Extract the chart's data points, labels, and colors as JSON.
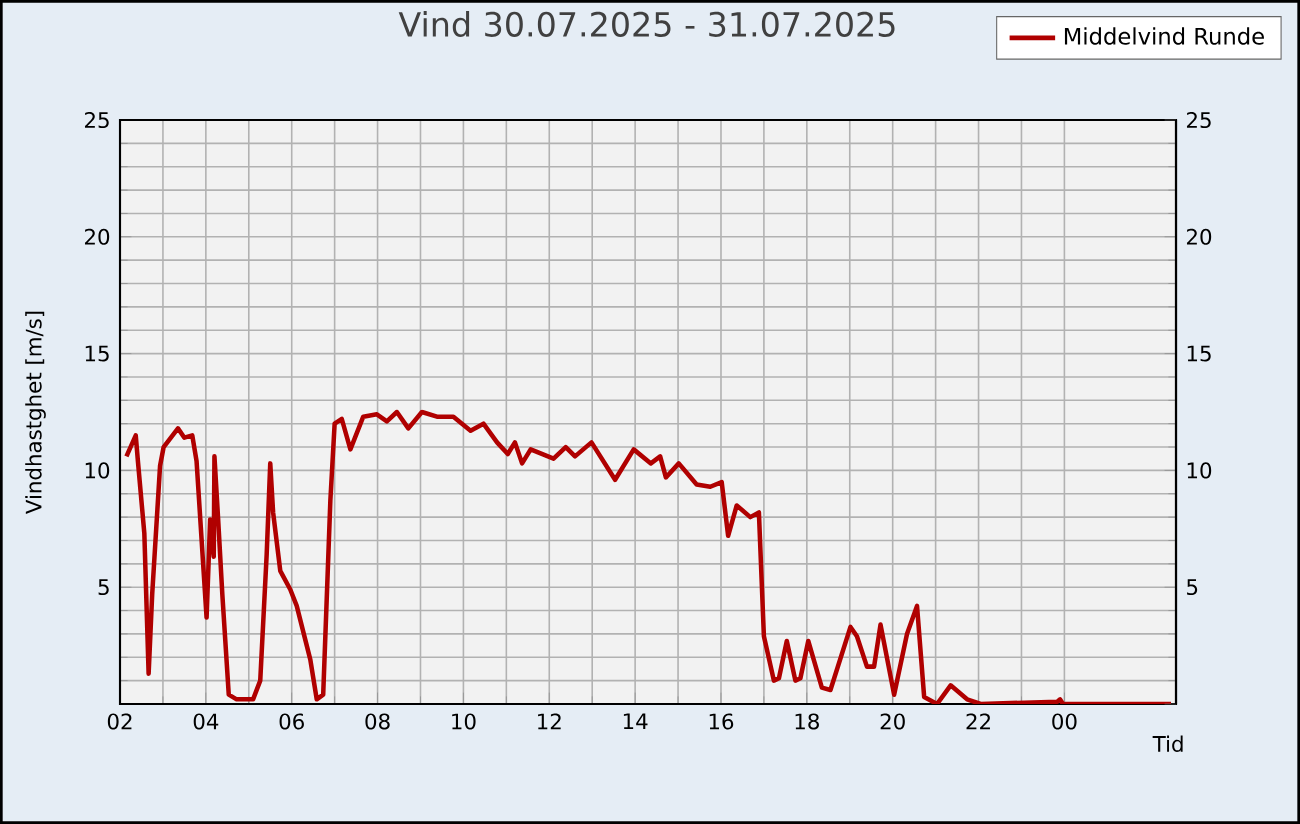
{
  "chart_data": {
    "type": "line",
    "title": "Vind 30.07.2025 - 31.07.2025",
    "xlabel": "Tid",
    "ylabel": "Vindhastghet [m/s]",
    "x": [
      "2025-07-30T02:09",
      "2025-07-30T02:22",
      "2025-07-30T02:25",
      "2025-07-30T02:34",
      "2025-07-30T02:40",
      "2025-07-30T02:45",
      "2025-07-30T02:56",
      "2025-07-30T03:01",
      "2025-07-30T03:21",
      "2025-07-30T03:30",
      "2025-07-30T03:41",
      "2025-07-30T03:47",
      "2025-07-30T04:01",
      "2025-07-30T04:06",
      "2025-07-30T04:11",
      "2025-07-30T04:12",
      "2025-07-30T04:17",
      "2025-07-30T04:23",
      "2025-07-30T04:32",
      "2025-07-30T04:43",
      "2025-07-30T05:06",
      "2025-07-30T05:16",
      "2025-07-30T05:25",
      "2025-07-30T05:30",
      "2025-07-30T05:34",
      "2025-07-30T05:44",
      "2025-07-30T05:58",
      "2025-07-30T06:07",
      "2025-07-30T06:26",
      "2025-07-30T06:35",
      "2025-07-30T06:44",
      "2025-07-30T06:54",
      "2025-07-30T07:00",
      "2025-07-30T07:10",
      "2025-07-30T07:22",
      "2025-07-30T07:40",
      "2025-07-30T07:59",
      "2025-07-30T08:13",
      "2025-07-30T08:27",
      "2025-07-30T08:43",
      "2025-07-30T09:02",
      "2025-07-30T09:23",
      "2025-07-30T09:46",
      "2025-07-30T10:10",
      "2025-07-30T10:28",
      "2025-07-30T10:47",
      "2025-07-30T11:02",
      "2025-07-30T11:12",
      "2025-07-30T11:22",
      "2025-07-30T11:34",
      "2025-07-30T12:06",
      "2025-07-30T12:23",
      "2025-07-30T12:36",
      "2025-07-30T12:59",
      "2025-07-30T13:32",
      "2025-07-30T13:58",
      "2025-07-30T14:22",
      "2025-07-30T14:35",
      "2025-07-30T14:43",
      "2025-07-30T15:01",
      "2025-07-30T15:26",
      "2025-07-30T15:45",
      "2025-07-30T16:01",
      "2025-07-30T16:10",
      "2025-07-30T16:22",
      "2025-07-30T16:41",
      "2025-07-30T16:53",
      "2025-07-30T17:00",
      "2025-07-30T17:14",
      "2025-07-30T17:21",
      "2025-07-30T17:32",
      "2025-07-30T17:44",
      "2025-07-30T17:51",
      "2025-07-30T18:02",
      "2025-07-30T18:21",
      "2025-07-30T18:33",
      "2025-07-30T19:01",
      "2025-07-30T19:10",
      "2025-07-30T19:24",
      "2025-07-30T19:34",
      "2025-07-30T19:43",
      "2025-07-30T20:02",
      "2025-07-30T20:20",
      "2025-07-30T20:34",
      "2025-07-30T20:44",
      "2025-07-30T21:02",
      "2025-07-30T21:21",
      "2025-07-30T21:44",
      "2025-07-30T22:03",
      "2025-07-30T23:50",
      "2025-07-30T23:54",
      "2025-07-30T23:58",
      "2025-07-31T02:29"
    ],
    "series": [
      {
        "name": "Middelvind Runde",
        "color": "#b00000",
        "values": [
          10.6,
          11.5,
          10.4,
          7.3,
          1.3,
          4.7,
          10.2,
          11.0,
          11.8,
          11.4,
          11.5,
          10.4,
          3.7,
          7.9,
          6.3,
          10.6,
          8.0,
          4.7,
          0.4,
          0.2,
          0.2,
          1.0,
          6.4,
          10.3,
          8.2,
          5.7,
          4.9,
          4.2,
          1.9,
          0.2,
          0.4,
          8.7,
          12.0,
          12.2,
          10.9,
          12.3,
          12.4,
          12.1,
          12.5,
          11.8,
          12.5,
          12.3,
          12.3,
          11.7,
          12.0,
          11.2,
          10.7,
          11.2,
          10.3,
          10.9,
          10.5,
          11.0,
          10.6,
          11.2,
          9.6,
          10.9,
          10.3,
          10.6,
          9.7,
          10.3,
          9.4,
          9.3,
          9.5,
          7.2,
          8.5,
          8.0,
          8.2,
          2.9,
          1.0,
          1.1,
          2.7,
          1.0,
          1.1,
          2.7,
          0.7,
          0.6,
          3.3,
          2.9,
          1.6,
          1.6,
          3.4,
          0.4,
          3.0,
          4.2,
          0.3,
          0.0,
          0.8,
          0.2,
          0.0,
          0.1,
          0.2,
          0.0,
          0.0
        ]
      }
    ],
    "xlim": [
      "2025-07-30T02:00",
      "2025-07-31T02:36"
    ],
    "xticks": [
      {
        "value": "2025-07-30T02:00",
        "label": "02"
      },
      {
        "value": "2025-07-30T04:00",
        "label": "04"
      },
      {
        "value": "2025-07-30T06:00",
        "label": "06"
      },
      {
        "value": "2025-07-30T08:00",
        "label": "08"
      },
      {
        "value": "2025-07-30T10:00",
        "label": "10"
      },
      {
        "value": "2025-07-30T12:00",
        "label": "12"
      },
      {
        "value": "2025-07-30T14:00",
        "label": "14"
      },
      {
        "value": "2025-07-30T16:00",
        "label": "16"
      },
      {
        "value": "2025-07-30T18:00",
        "label": "18"
      },
      {
        "value": "2025-07-30T20:00",
        "label": "20"
      },
      {
        "value": "2025-07-30T22:00",
        "label": "22"
      },
      {
        "value": "2025-07-31T00:00",
        "label": "00"
      }
    ],
    "ylim": [
      0,
      25
    ],
    "yticks": [
      {
        "value": 0,
        "label": null
      },
      5,
      10,
      15,
      20,
      25
    ],
    "y2lim": [
      0,
      25
    ],
    "y2ticks": [
      {
        "value": 0,
        "label": null
      },
      5,
      10,
      15,
      20,
      25
    ],
    "grid": true,
    "legend": "top right"
  }
}
